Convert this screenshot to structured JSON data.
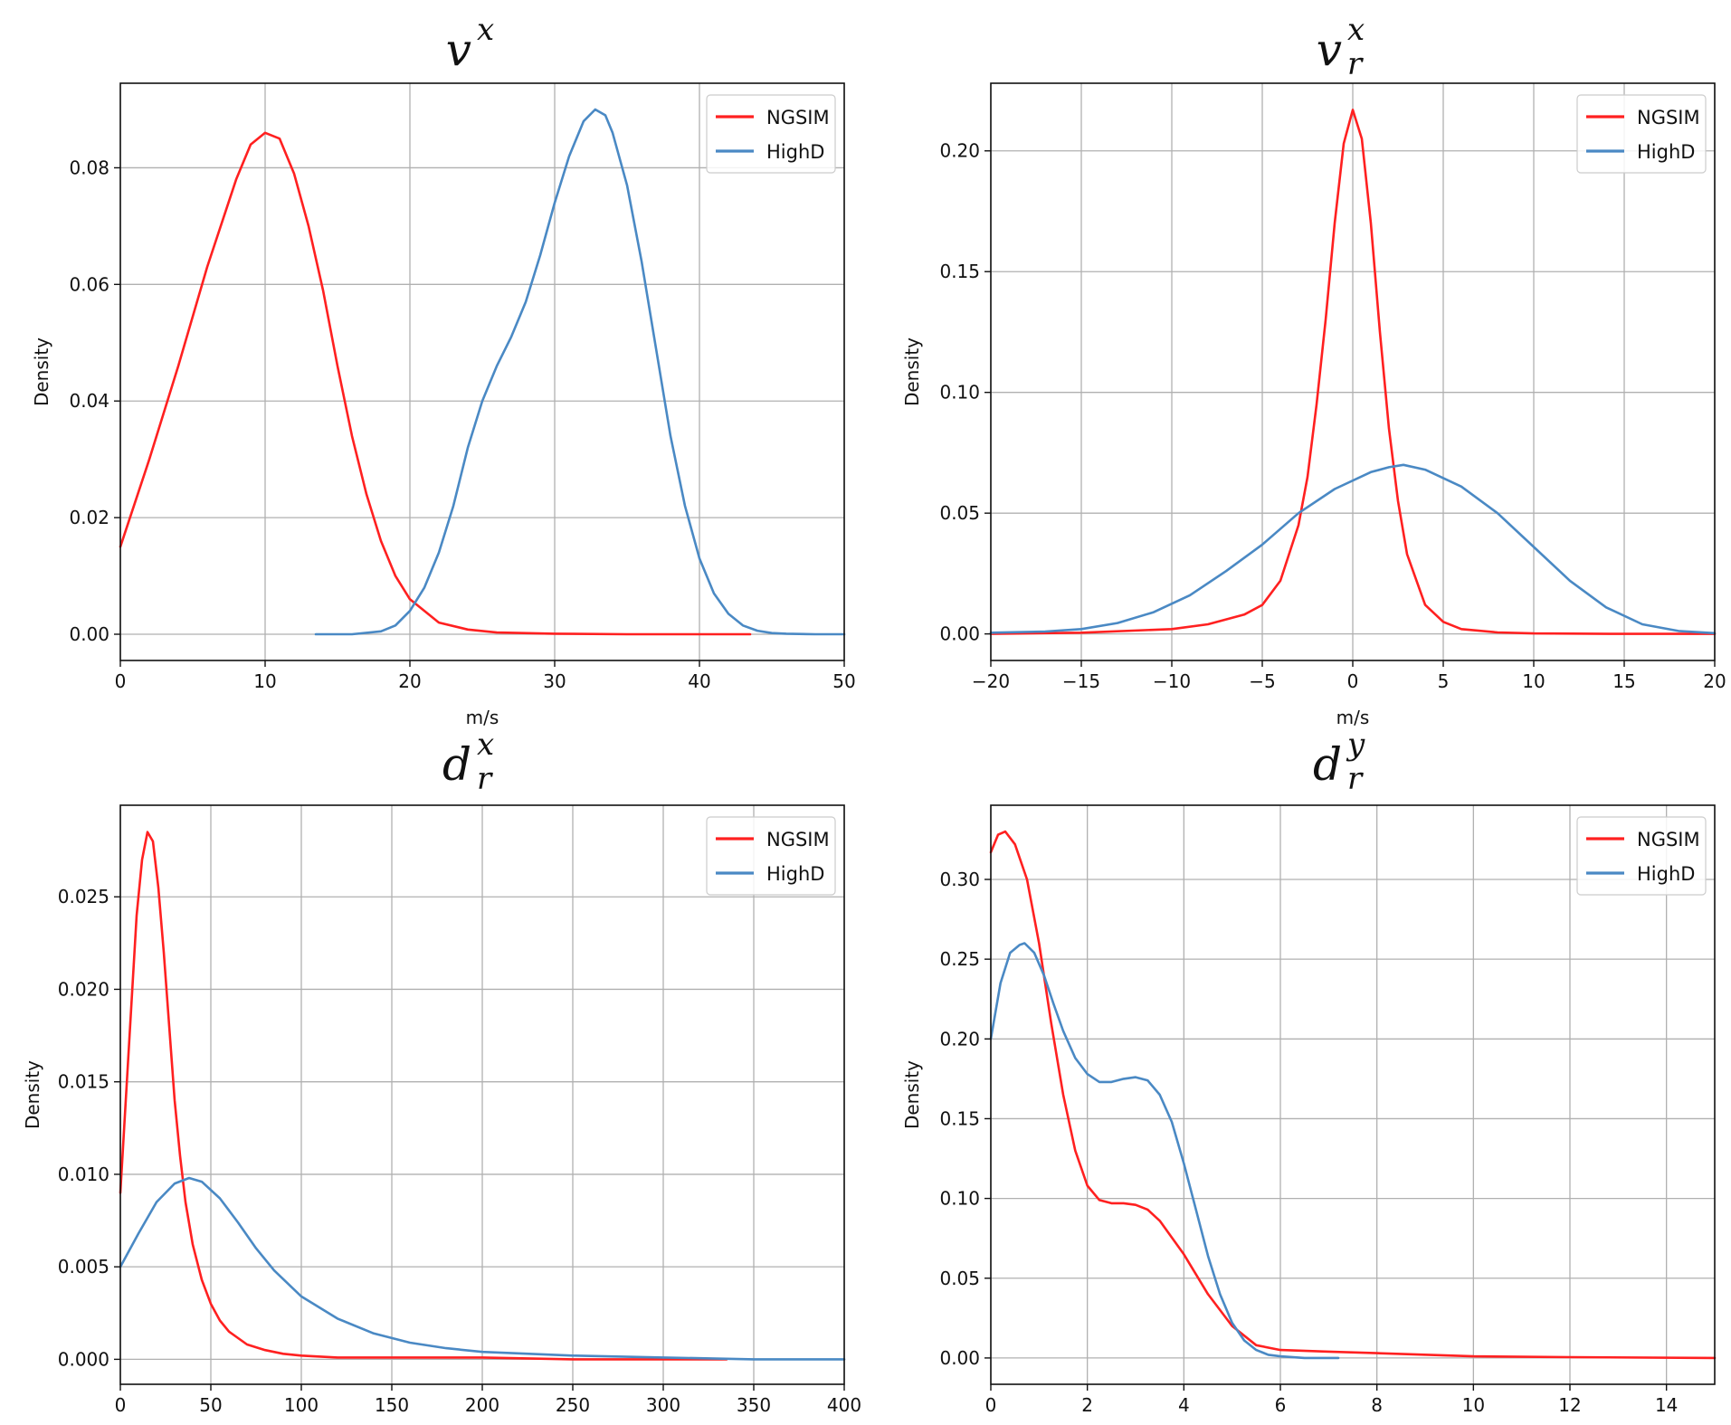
{
  "chart_data": [
    {
      "type": "line",
      "title": {
        "base": "v",
        "sup": "x",
        "sub": ""
      },
      "xlabel": "m/s",
      "ylabel": "Density",
      "xlim": [
        0,
        50
      ],
      "ylim": [
        -0.0045,
        0.0945
      ],
      "xticks": [
        0,
        10,
        20,
        30,
        40,
        50
      ],
      "xtick_labels": [
        "0",
        "10",
        "20",
        "30",
        "40",
        "50"
      ],
      "yticks": [
        0,
        0.02,
        0.04,
        0.06,
        0.08
      ],
      "ytick_labels": [
        "0.00",
        "0.02",
        "0.04",
        "0.06",
        "0.08"
      ],
      "grid": true,
      "legend": "top-right",
      "series": [
        {
          "name": "NGSIM",
          "color": "#ff2020",
          "x": [
            0,
            2,
            4,
            6,
            8,
            9,
            10,
            11,
            12,
            13,
            14,
            15,
            16,
            17,
            18,
            19,
            20,
            22,
            24,
            26,
            30,
            35,
            40,
            43.5
          ],
          "y": [
            0.015,
            0.03,
            0.046,
            0.063,
            0.078,
            0.084,
            0.086,
            0.085,
            0.079,
            0.07,
            0.059,
            0.046,
            0.034,
            0.024,
            0.016,
            0.01,
            0.006,
            0.002,
            0.0008,
            0.0003,
            0.0001,
            0.0,
            0.0,
            0.0
          ]
        },
        {
          "name": "HighD",
          "color": "#4a89c4",
          "x": [
            13.5,
            16,
            18,
            19,
            20,
            21,
            22,
            23,
            24,
            25,
            26,
            27,
            28,
            29,
            30,
            31,
            32,
            32.8,
            33.5,
            34,
            35,
            36,
            37,
            38,
            39,
            40,
            41,
            42,
            43,
            44,
            45,
            46,
            48,
            50
          ],
          "y": [
            0.0,
            0.0,
            0.0005,
            0.0015,
            0.004,
            0.008,
            0.014,
            0.022,
            0.032,
            0.04,
            0.046,
            0.051,
            0.057,
            0.065,
            0.074,
            0.082,
            0.088,
            0.09,
            0.089,
            0.086,
            0.077,
            0.064,
            0.049,
            0.034,
            0.022,
            0.013,
            0.007,
            0.0035,
            0.0015,
            0.0006,
            0.0002,
            0.0001,
            0.0,
            0.0
          ]
        }
      ]
    },
    {
      "type": "line",
      "title": {
        "base": "v",
        "sup": "x",
        "sub": "r"
      },
      "xlabel": "m/s",
      "ylabel": "Density",
      "xlim": [
        -20,
        20
      ],
      "ylim": [
        -0.011,
        0.228
      ],
      "xticks": [
        -20,
        -15,
        -10,
        -5,
        0,
        5,
        10,
        15,
        20
      ],
      "xtick_labels": [
        "−20",
        "−15",
        "−10",
        "−5",
        "0",
        "5",
        "10",
        "15",
        "20"
      ],
      "yticks": [
        0,
        0.05,
        0.1,
        0.15,
        0.2
      ],
      "ytick_labels": [
        "0.00",
        "0.05",
        "0.10",
        "0.15",
        "0.20"
      ],
      "grid": true,
      "legend": "top-right",
      "series": [
        {
          "name": "NGSIM",
          "color": "#ff2020",
          "x": [
            -20,
            -15,
            -10,
            -8,
            -6,
            -5,
            -4,
            -3,
            -2.5,
            -2,
            -1.5,
            -1,
            -0.5,
            0,
            0.5,
            1,
            1.5,
            2,
            2.5,
            3,
            4,
            5,
            6,
            8,
            10,
            15,
            20
          ],
          "y": [
            0.0,
            0.0005,
            0.002,
            0.004,
            0.008,
            0.012,
            0.022,
            0.045,
            0.065,
            0.095,
            0.13,
            0.17,
            0.203,
            0.217,
            0.205,
            0.17,
            0.125,
            0.085,
            0.055,
            0.033,
            0.012,
            0.005,
            0.002,
            0.0006,
            0.0002,
            0.0,
            0.0
          ]
        },
        {
          "name": "HighD",
          "color": "#4a89c4",
          "x": [
            -20,
            -17,
            -15,
            -13,
            -11,
            -9,
            -7,
            -5,
            -3,
            -1,
            1,
            2,
            2.8,
            4,
            6,
            8,
            10,
            12,
            14,
            16,
            18,
            20
          ],
          "y": [
            0.0005,
            0.001,
            0.002,
            0.0045,
            0.009,
            0.016,
            0.026,
            0.037,
            0.05,
            0.06,
            0.067,
            0.069,
            0.07,
            0.068,
            0.061,
            0.05,
            0.036,
            0.022,
            0.011,
            0.004,
            0.0012,
            0.0003
          ]
        }
      ]
    },
    {
      "type": "line",
      "title": {
        "base": "d",
        "sup": "x",
        "sub": "r"
      },
      "xlabel": "",
      "ylabel": "Density",
      "xlim": [
        0,
        400
      ],
      "ylim": [
        -0.00135,
        0.02995
      ],
      "xticks": [
        0,
        50,
        100,
        150,
        200,
        250,
        300,
        350,
        400
      ],
      "xtick_labels": [
        "0",
        "50",
        "100",
        "150",
        "200",
        "250",
        "300",
        "350",
        "400"
      ],
      "yticks": [
        0,
        0.005,
        0.01,
        0.015,
        0.02,
        0.025
      ],
      "ytick_labels": [
        "0.000",
        "0.005",
        "0.010",
        "0.015",
        "0.020",
        "0.025"
      ],
      "grid": true,
      "legend": "top-right",
      "series": [
        {
          "name": "NGSIM",
          "color": "#ff2020",
          "x": [
            0,
            3,
            6,
            9,
            12,
            15,
            18,
            21,
            24,
            27,
            30,
            33,
            36,
            40,
            45,
            50,
            55,
            60,
            70,
            80,
            90,
            100,
            120,
            150,
            200,
            250,
            300,
            335
          ],
          "y": [
            0.009,
            0.014,
            0.019,
            0.024,
            0.027,
            0.0285,
            0.028,
            0.0255,
            0.022,
            0.018,
            0.014,
            0.011,
            0.0085,
            0.0062,
            0.0043,
            0.003,
            0.0021,
            0.0015,
            0.0008,
            0.0005,
            0.0003,
            0.0002,
            0.0001,
            0.0001,
            0.0001,
            0.0,
            0.0,
            0.0
          ]
        },
        {
          "name": "HighD",
          "color": "#4a89c4",
          "x": [
            0,
            10,
            20,
            30,
            38,
            45,
            55,
            65,
            75,
            85,
            100,
            120,
            140,
            160,
            180,
            200,
            250,
            300,
            350,
            400
          ],
          "y": [
            0.005,
            0.0068,
            0.0085,
            0.0095,
            0.0098,
            0.0096,
            0.0087,
            0.0074,
            0.006,
            0.0048,
            0.0034,
            0.0022,
            0.0014,
            0.0009,
            0.0006,
            0.0004,
            0.0002,
            0.0001,
            0.0,
            0.0
          ]
        }
      ]
    },
    {
      "type": "line",
      "title": {
        "base": "d",
        "sup": "y",
        "sub": "r"
      },
      "xlabel": "",
      "ylabel": "Density",
      "xlim": [
        0,
        15
      ],
      "ylim": [
        -0.0165,
        0.3465
      ],
      "xticks": [
        0,
        2,
        4,
        6,
        8,
        10,
        12,
        14
      ],
      "xtick_labels": [
        "0",
        "2",
        "4",
        "6",
        "8",
        "10",
        "12",
        "14"
      ],
      "yticks": [
        0,
        0.05,
        0.1,
        0.15,
        0.2,
        0.25,
        0.3
      ],
      "ytick_labels": [
        "0.00",
        "0.05",
        "0.10",
        "0.15",
        "0.20",
        "0.25",
        "0.30"
      ],
      "grid": true,
      "legend": "top-right",
      "series": [
        {
          "name": "NGSIM",
          "color": "#ff2020",
          "x": [
            0,
            0.15,
            0.3,
            0.5,
            0.75,
            1,
            1.25,
            1.5,
            1.75,
            2,
            2.25,
            2.5,
            2.75,
            3,
            3.25,
            3.5,
            4,
            4.5,
            5,
            5.5,
            6,
            7,
            8,
            10,
            12,
            15
          ],
          "y": [
            0.317,
            0.328,
            0.33,
            0.322,
            0.3,
            0.26,
            0.21,
            0.165,
            0.13,
            0.108,
            0.099,
            0.097,
            0.097,
            0.096,
            0.093,
            0.086,
            0.065,
            0.04,
            0.02,
            0.008,
            0.005,
            0.004,
            0.003,
            0.001,
            0.0005,
            0.0
          ]
        },
        {
          "name": "HighD",
          "color": "#4a89c4",
          "x": [
            0,
            0.2,
            0.4,
            0.6,
            0.7,
            0.9,
            1.1,
            1.3,
            1.5,
            1.75,
            2,
            2.25,
            2.5,
            2.75,
            3,
            3.25,
            3.5,
            3.75,
            4,
            4.25,
            4.5,
            4.75,
            5,
            5.25,
            5.5,
            5.75,
            6,
            6.5,
            7.2
          ],
          "y": [
            0.2,
            0.235,
            0.254,
            0.259,
            0.26,
            0.254,
            0.24,
            0.222,
            0.205,
            0.188,
            0.178,
            0.173,
            0.173,
            0.175,
            0.176,
            0.174,
            0.165,
            0.148,
            0.122,
            0.093,
            0.064,
            0.04,
            0.022,
            0.011,
            0.005,
            0.002,
            0.001,
            0.0,
            0.0
          ]
        }
      ]
    }
  ]
}
